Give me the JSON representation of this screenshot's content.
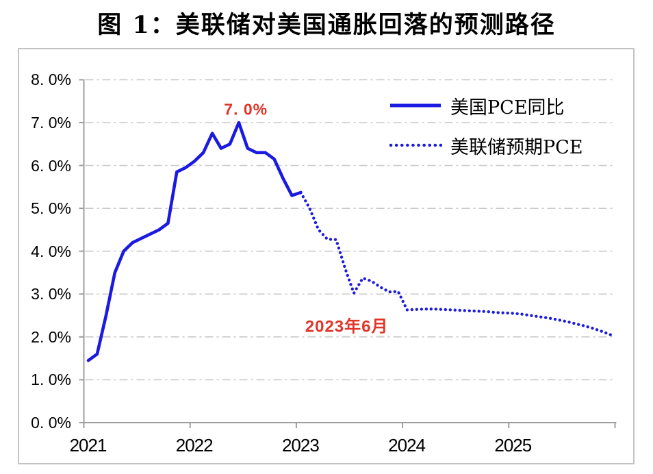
{
  "page": {
    "title": "图 1：美联储对美国通胀回落的预测路径"
  },
  "chart_data": {
    "type": "line",
    "title": "图 1：美联储对美国通胀回落的预测路径",
    "x_unit": "month",
    "x_start": "2021-01",
    "xlabel": "",
    "ylabel": "",
    "ylim": [
      0,
      8
    ],
    "grid": "horizontal dash-dot",
    "legend_position": "top-right",
    "colors": {
      "line_blue": "#1a1ae0",
      "annotation_red": "#e23428",
      "gridline_gray": "#c9c9c9",
      "axis_gray": "#9e9e9e",
      "border_gray": "#c3c3c3",
      "text_black": "#000000"
    },
    "y_ticks": [
      {
        "label": "8. 0%",
        "value": 8
      },
      {
        "label": "7. 0%",
        "value": 7
      },
      {
        "label": "6. 0%",
        "value": 6
      },
      {
        "label": "5. 0%",
        "value": 5
      },
      {
        "label": "4. 0%",
        "value": 4
      },
      {
        "label": "3. 0%",
        "value": 3
      },
      {
        "label": "2. 0%",
        "value": 2
      },
      {
        "label": "1. 0%",
        "value": 1
      },
      {
        "label": "0. 0%",
        "value": 0
      }
    ],
    "x_ticks": [
      {
        "label": "2021",
        "value": 2021
      },
      {
        "label": "2022",
        "value": 2022
      },
      {
        "label": "2023",
        "value": 2023
      },
      {
        "label": "2024",
        "value": 2024
      },
      {
        "label": "2025",
        "value": 2025
      }
    ],
    "series": [
      {
        "name": "美国PCE同比",
        "style": "solid",
        "start_month_index": 0,
        "values": [
          1.45,
          1.6,
          2.5,
          3.5,
          4.0,
          4.2,
          4.3,
          4.4,
          4.5,
          4.65,
          5.85,
          5.95,
          6.1,
          6.3,
          6.75,
          6.4,
          6.5,
          7.0,
          6.4,
          6.3,
          6.3,
          6.15,
          5.7,
          5.3,
          5.37
        ]
      },
      {
        "name": "美联储预期PCE",
        "style": "dotted",
        "start_month_index": 24,
        "values": [
          5.37,
          5.0,
          4.5,
          4.28,
          4.27,
          3.6,
          3.02,
          3.37,
          3.3,
          3.16,
          3.05,
          3.06,
          2.63,
          2.64,
          2.65,
          2.65,
          2.64,
          2.63,
          2.62,
          2.61,
          2.6,
          2.59,
          2.57,
          2.56,
          2.55,
          2.53,
          2.5,
          2.47,
          2.44,
          2.4,
          2.36,
          2.31,
          2.26,
          2.2,
          2.13,
          2.05
        ]
      }
    ],
    "annotations": [
      {
        "text": "7. 0%",
        "month_index": 17.8,
        "value": 7.3
      },
      {
        "text": "2023年6月",
        "month_index": 29.2,
        "value": 2.28
      }
    ]
  }
}
